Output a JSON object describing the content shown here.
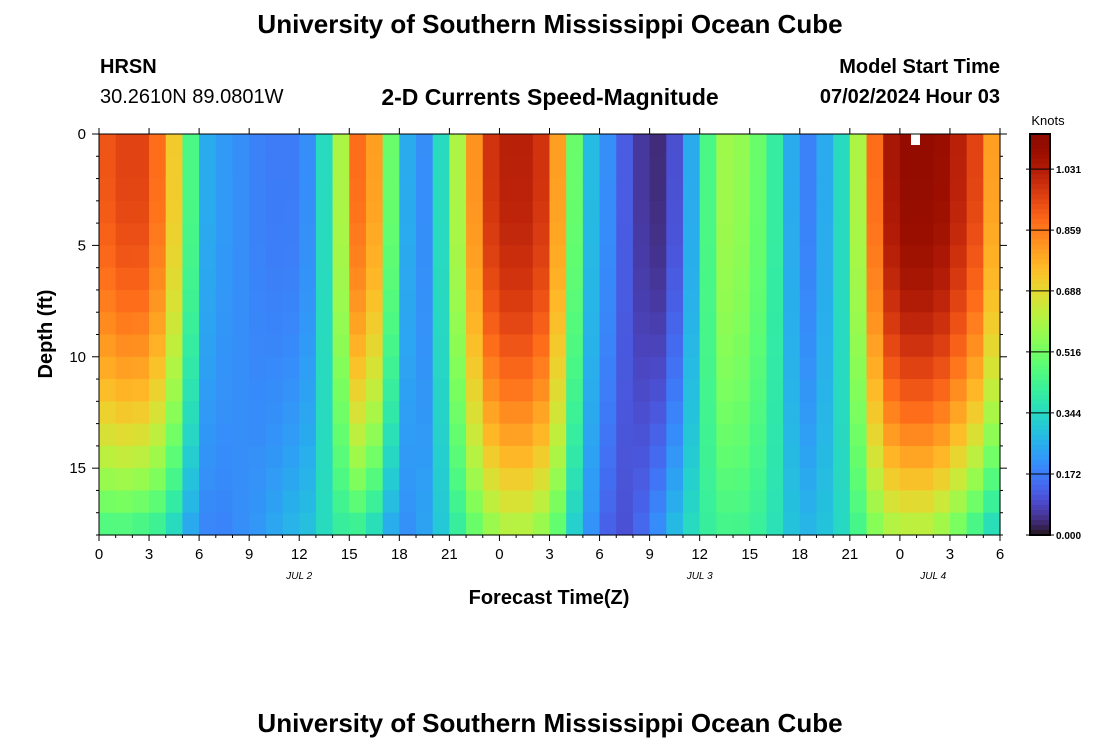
{
  "page": {
    "title": "University of Southern Mississippi Ocean Cube",
    "station": "HRSN",
    "coordinates": "30.2610N  89.0801W",
    "subtitle": "2-D Currents Speed-Magnitude",
    "model_start_label": "Model Start Time",
    "model_start_value": "07/02/2024 Hour 03",
    "footer_title": "University of Southern Mississippi Ocean Cube"
  },
  "chart_data": {
    "type": "heatmap",
    "title": "2-D Currents Speed-Magnitude",
    "xlabel": "Forecast Time(Z)",
    "ylabel": "Depth (ft)",
    "x_ticks": [
      "0",
      "3",
      "6",
      "9",
      "12",
      "15",
      "18",
      "21",
      "0",
      "3",
      "6",
      "9",
      "12",
      "15",
      "18",
      "21",
      "0",
      "3",
      "6"
    ],
    "date_labels": [
      "JUL 2",
      "JUL 3",
      "JUL 4"
    ],
    "x_range_hours": [
      0,
      54
    ],
    "y_ticks": [
      "0",
      "5",
      "10",
      "15"
    ],
    "ylim_ft": [
      0,
      18
    ],
    "y_inverted": true,
    "colorbar": {
      "label": "Knots",
      "ticks": [
        "1.031",
        "0.859",
        "0.688",
        "0.516",
        "0.344",
        "0.172",
        "0.000"
      ],
      "range": [
        0,
        1.13
      ],
      "colormap": "turbo"
    },
    "columns_hours": [
      0,
      1,
      2,
      3,
      4,
      5,
      6,
      7,
      8,
      9,
      10,
      11,
      12,
      13,
      14,
      15,
      16,
      17,
      18,
      19,
      20,
      21,
      22,
      23,
      24,
      25,
      26,
      27,
      28,
      29,
      30,
      31,
      32,
      33,
      34,
      35,
      36,
      37,
      38,
      39,
      40,
      41,
      42,
      43,
      44,
      45,
      46,
      47,
      48,
      49,
      50,
      51,
      52,
      53,
      54
    ],
    "depth_rows_ft": [
      0,
      1,
      2,
      3,
      4,
      5,
      6,
      7,
      8,
      9,
      10,
      11,
      12,
      13,
      14,
      15,
      16,
      17,
      18
    ],
    "surface_speed_knots": [
      0.92,
      0.95,
      0.95,
      0.88,
      0.72,
      0.45,
      0.25,
      0.22,
      0.2,
      0.18,
      0.17,
      0.17,
      0.2,
      0.35,
      0.6,
      0.88,
      0.8,
      0.5,
      0.25,
      0.2,
      0.35,
      0.6,
      0.82,
      0.98,
      1.02,
      1.02,
      0.98,
      0.8,
      0.5,
      0.28,
      0.2,
      0.12,
      0.06,
      0.04,
      0.1,
      0.25,
      0.45,
      0.58,
      0.56,
      0.5,
      0.4,
      0.25,
      0.18,
      0.25,
      0.35,
      0.6,
      0.88,
      1.05,
      1.1,
      1.1,
      1.08,
      1.02,
      0.95,
      0.8,
      0.62
    ],
    "bottom_speed_knots": [
      0.4,
      0.4,
      0.38,
      0.36,
      0.3,
      0.22,
      0.18,
      0.18,
      0.2,
      0.22,
      0.25,
      0.28,
      0.3,
      0.35,
      0.38,
      0.36,
      0.3,
      0.22,
      0.2,
      0.24,
      0.3,
      0.38,
      0.46,
      0.52,
      0.56,
      0.56,
      0.52,
      0.45,
      0.3,
      0.2,
      0.12,
      0.1,
      0.15,
      0.22,
      0.3,
      0.36,
      0.4,
      0.42,
      0.42,
      0.4,
      0.36,
      0.3,
      0.28,
      0.3,
      0.34,
      0.42,
      0.5,
      0.55,
      0.56,
      0.56,
      0.52,
      0.46,
      0.38,
      0.3,
      0.25
    ]
  }
}
